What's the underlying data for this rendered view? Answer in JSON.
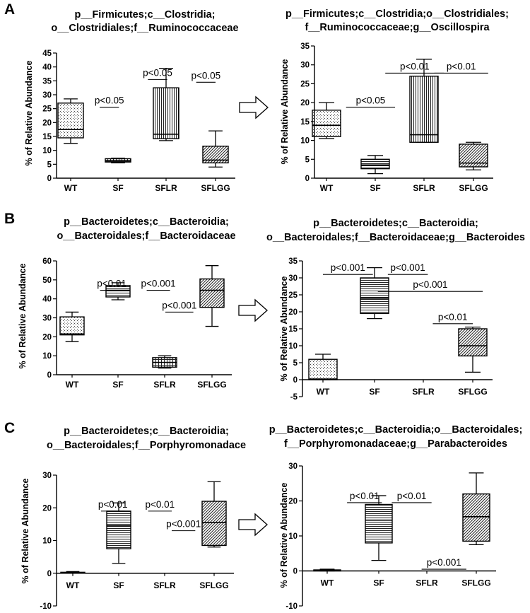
{
  "arrow_label": "arrow",
  "panels": [
    {
      "letter": "A",
      "charts": [
        {
          "type": "box",
          "title": [
            "p__Firmicutes;c__Clostridia;",
            "o__Clostridiales;f__Ruminococcaceae"
          ],
          "ylabel": "% of Relative Abundance",
          "ylim": [
            0,
            45
          ],
          "yticks": [
            0,
            5,
            10,
            15,
            20,
            25,
            30,
            35,
            40,
            45
          ],
          "categories": [
            "WT",
            "SF",
            "SFLR",
            "SFLGG"
          ],
          "boxes": [
            {
              "min": 12.5,
              "q1": 14.5,
              "median": 17.5,
              "q3": 27,
              "max": 28.5,
              "pattern": "dots"
            },
            {
              "min": 5.5,
              "q1": 5.8,
              "median": 6.3,
              "q3": 7,
              "max": 7.2,
              "pattern": "grid"
            },
            {
              "min": 13.5,
              "q1": 14.2,
              "median": 15.8,
              "q3": 32.5,
              "max": 39.5,
              "pattern": "vlines"
            },
            {
              "min": 4,
              "q1": 5.5,
              "median": 6.5,
              "q3": 11.5,
              "max": 17,
              "pattern": "diag"
            }
          ],
          "significance": [
            {
              "label": "p<0.05",
              "from": 0.6,
              "to": 1.0,
              "y": 25.5
            },
            {
              "label": "p<0.05",
              "from": 1.6,
              "to": 2.0,
              "y": 35.5
            },
            {
              "label": "p<0.05",
              "from": 2.6,
              "to": 3.0,
              "y": 34.5
            }
          ]
        },
        {
          "type": "box",
          "title": [
            "p__Firmicutes;c__Clostridia;o__Clostridiales;",
            "f__Ruminococcaceae;g__Oscillospira"
          ],
          "ylabel": "% of Relative Abundance",
          "ylim": [
            0,
            35
          ],
          "yticks": [
            0,
            5,
            10,
            15,
            20,
            25,
            30,
            35
          ],
          "categories": [
            "WT",
            "SF",
            "SFLR",
            "SFLGG"
          ],
          "boxes": [
            {
              "min": 10.5,
              "q1": 11,
              "median": 14,
              "q3": 18,
              "max": 20,
              "pattern": "dots"
            },
            {
              "min": 1.2,
              "q1": 2.5,
              "median": 3.5,
              "q3": 5,
              "max": 6,
              "pattern": "hlines"
            },
            {
              "min": 9.5,
              "q1": 9.5,
              "median": 11.5,
              "q3": 27,
              "max": 31.5,
              "pattern": "vlines"
            },
            {
              "min": 2.2,
              "q1": 3,
              "median": 4,
              "q3": 9,
              "max": 9.5,
              "pattern": "diag"
            }
          ],
          "significance": [
            {
              "label": "p<0.05",
              "from": 0.4,
              "to": 1.4,
              "y": 18.8
            },
            {
              "label": "p<0.01",
              "from": 1.2,
              "to": 2.4,
              "y": 27.8
            },
            {
              "label": "p<0.01",
              "from": 2.2,
              "to": 3.3,
              "y": 27.8
            }
          ]
        }
      ]
    },
    {
      "letter": "B",
      "charts": [
        {
          "type": "box",
          "title": [
            "p__Bacteroidetes;c__Bacteroidia;",
            "o__Bacteroidales;f__Bacteroidaceae"
          ],
          "ylabel": "% of Relative Abundance",
          "ylim": [
            0,
            60
          ],
          "yticks": [
            0,
            10,
            20,
            30,
            40,
            50,
            60
          ],
          "categories": [
            "WT",
            "SF",
            "SFLR",
            "SFLGG"
          ],
          "boxes": [
            {
              "min": 17.5,
              "q1": 21,
              "median": 21.5,
              "q3": 30.5,
              "max": 33,
              "pattern": "dots"
            },
            {
              "min": 39.5,
              "q1": 41,
              "median": 44.5,
              "q3": 47,
              "max": 48.5,
              "pattern": "hlines"
            },
            {
              "min": 3.5,
              "q1": 4,
              "median": 6.5,
              "q3": 9,
              "max": 10,
              "pattern": "grid"
            },
            {
              "min": 25.5,
              "q1": 35.5,
              "median": 44.5,
              "q3": 50.5,
              "max": 57.5,
              "pattern": "diag"
            }
          ],
          "significance": [
            {
              "label": "p<0.01",
              "from": 0.6,
              "to": 1.1,
              "y": 44.5
            },
            {
              "label": "p<0.001",
              "from": 1.6,
              "to": 2.1,
              "y": 44.5
            },
            {
              "label": "p<0.001",
              "from": 2.0,
              "to": 2.6,
              "y": 33
            }
          ]
        },
        {
          "type": "box",
          "title": [
            "p__Bacteroidetes;c__Bacteroidia;",
            "o__Bacteroidales;f__Bacteroidaceae;g__Bacteroides"
          ],
          "ylabel": "% of Relative Abundance",
          "ylim": [
            -5,
            35
          ],
          "yticks": [
            -5,
            0,
            5,
            10,
            15,
            20,
            25,
            30,
            35
          ],
          "categories": [
            "WT",
            "SF",
            "SFLR",
            "SFLGG"
          ],
          "boxes": [
            {
              "min": 0,
              "q1": 0,
              "median": 0.2,
              "q3": 6,
              "max": 7.5,
              "pattern": "dots"
            },
            {
              "min": 18,
              "q1": 19.5,
              "median": 24,
              "q3": 30,
              "max": 33,
              "pattern": "hlines"
            },
            {
              "min": 0,
              "q1": 0,
              "median": 0,
              "q3": 0,
              "max": 0,
              "pattern": "none"
            },
            {
              "min": 2.2,
              "q1": 7,
              "median": 10,
              "q3": 15,
              "max": 15.5,
              "pattern": "diag"
            }
          ],
          "significance": [
            {
              "label": "p<0.001",
              "from": 0,
              "to": 1.0,
              "y": 31
            },
            {
              "label": "p<0.001",
              "from": 1.3,
              "to": 2.1,
              "y": 31
            },
            {
              "label": "p<0.001",
              "from": 1.1,
              "to": 3.2,
              "y": 26
            },
            {
              "label": "p<0.01",
              "from": 2.2,
              "to": 3.0,
              "y": 16.5
            }
          ]
        }
      ]
    },
    {
      "letter": "C",
      "charts": [
        {
          "type": "box",
          "title": [
            "p__Bacteroidetes;c__Bacteroidia;",
            "o__Bacteroidales;f__Porphyromonadace"
          ],
          "ylabel": "% of Relative Abundance",
          "ylim": [
            -10,
            30
          ],
          "yticks": [
            -10,
            0,
            10,
            20,
            30
          ],
          "categories": [
            "WT",
            "SF",
            "SFLR",
            "SFLGG"
          ],
          "boxes": [
            {
              "min": 0,
              "q1": 0,
              "median": 0.1,
              "q3": 0.3,
              "max": 0.5,
              "pattern": "none"
            },
            {
              "min": 3,
              "q1": 7.5,
              "median": 14.5,
              "q3": 19,
              "max": 21.5,
              "pattern": "hlines"
            },
            {
              "min": 0,
              "q1": 0,
              "median": 0,
              "q3": 0,
              "max": 0,
              "pattern": "none"
            },
            {
              "min": 8,
              "q1": 8.5,
              "median": 15.5,
              "q3": 22,
              "max": 28,
              "pattern": "diag"
            }
          ],
          "significance": [
            {
              "label": "p<0.01",
              "from": 0.6,
              "to": 1.1,
              "y": 19
            },
            {
              "label": "p<0.01",
              "from": 1.6,
              "to": 2.1,
              "y": 19
            },
            {
              "label": "p<0.001",
              "from": 2.1,
              "to": 2.6,
              "y": 13
            }
          ]
        },
        {
          "type": "box",
          "title": [
            "p__Bacteroidetes;c__Bacteroidia;o__Bacteroidales;",
            "f__Porphyromonadaceae;g__Parabacteroides"
          ],
          "ylabel": "% of Relative Abundance",
          "ylim": [
            -10,
            30
          ],
          "yticks": [
            -10,
            0,
            10,
            20,
            30
          ],
          "categories": [
            "WT",
            "SF",
            "SFLR",
            "SFLGG"
          ],
          "boxes": [
            {
              "min": 0,
              "q1": 0,
              "median": 0.1,
              "q3": 0.3,
              "max": 0.5,
              "pattern": "none"
            },
            {
              "min": 3,
              "q1": 8,
              "median": 14.5,
              "q3": 19,
              "max": 21.5,
              "pattern": "hlines"
            },
            {
              "min": 0,
              "q1": 0,
              "median": 0,
              "q3": 0,
              "max": 0,
              "pattern": "none"
            },
            {
              "min": 7.5,
              "q1": 8.5,
              "median": 15.5,
              "q3": 22,
              "max": 28,
              "pattern": "diag"
            }
          ],
          "significance": [
            {
              "label": "p<0.01",
              "from": 0.4,
              "to": 1.1,
              "y": 19.5
            },
            {
              "label": "p<0.01",
              "from": 1.3,
              "to": 2.1,
              "y": 19.5
            },
            {
              "label": "p<0.001",
              "from": 1.9,
              "to": 2.8,
              "y": 0.5
            }
          ]
        }
      ]
    }
  ],
  "chart_data": [
    {
      "type": "box",
      "panel": "A-left",
      "title": "p__Firmicutes;c__Clostridia; o__Clostridiales;f__Ruminococcaceae",
      "ylabel": "% of Relative Abundance",
      "ylim": [
        0,
        45
      ],
      "categories": [
        "WT",
        "SF",
        "SFLR",
        "SFLGG"
      ],
      "medians": [
        17.5,
        6.3,
        15.8,
        6.5
      ],
      "significance": [
        "p<0.05",
        "p<0.05",
        "p<0.05"
      ]
    },
    {
      "type": "box",
      "panel": "A-right",
      "title": "p__Firmicutes;c__Clostridia;o__Clostridiales; f__Ruminococcaceae;g__Oscillospira",
      "ylabel": "% of Relative Abundance",
      "ylim": [
        0,
        35
      ],
      "categories": [
        "WT",
        "SF",
        "SFLR",
        "SFLGG"
      ],
      "medians": [
        14,
        3.5,
        11.5,
        4
      ],
      "significance": [
        "p<0.05",
        "p<0.01",
        "p<0.01"
      ]
    },
    {
      "type": "box",
      "panel": "B-left",
      "title": "p__Bacteroidetes;c__Bacteroidia; o__Bacteroidales;f__Bacteroidaceae",
      "ylabel": "% of Relative Abundance",
      "ylim": [
        0,
        60
      ],
      "categories": [
        "WT",
        "SF",
        "SFLR",
        "SFLGG"
      ],
      "medians": [
        21.5,
        44.5,
        6.5,
        44.5
      ],
      "significance": [
        "p<0.01",
        "p<0.001",
        "p<0.001"
      ]
    },
    {
      "type": "box",
      "panel": "B-right",
      "title": "p__Bacteroidetes;c__Bacteroidia; o__Bacteroidales;f__Bacteroidaceae;g__Bacteroides",
      "ylabel": "% of Relative Abundance",
      "ylim": [
        -5,
        35
      ],
      "categories": [
        "WT",
        "SF",
        "SFLR",
        "SFLGG"
      ],
      "medians": [
        0.2,
        24,
        0,
        10
      ],
      "significance": [
        "p<0.001",
        "p<0.001",
        "p<0.001",
        "p<0.01"
      ]
    },
    {
      "type": "box",
      "panel": "C-left",
      "title": "p__Bacteroidetes;c__Bacteroidia; o__Bacteroidales;f__Porphyromonadace",
      "ylabel": "% of Relative Abundance",
      "ylim": [
        -10,
        30
      ],
      "categories": [
        "WT",
        "SF",
        "SFLR",
        "SFLGG"
      ],
      "medians": [
        0.1,
        14.5,
        0,
        15.5
      ],
      "significance": [
        "p<0.01",
        "p<0.01",
        "p<0.001"
      ]
    },
    {
      "type": "box",
      "panel": "C-right",
      "title": "p__Bacteroidetes;c__Bacteroidia;o__Bacteroidales; f__Porphyromonadaceae;g__Parabacteroides",
      "ylabel": "% of Relative Abundance",
      "ylim": [
        -10,
        30
      ],
      "categories": [
        "WT",
        "SF",
        "SFLR",
        "SFLGG"
      ],
      "medians": [
        0.1,
        14.5,
        0,
        15.5
      ],
      "significance": [
        "p<0.01",
        "p<0.01",
        "p<0.001"
      ]
    }
  ]
}
